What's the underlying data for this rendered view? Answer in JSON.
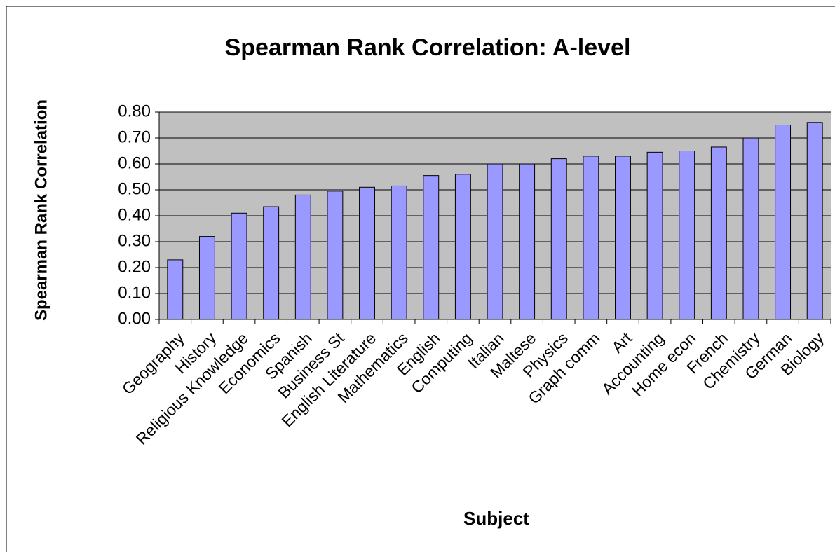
{
  "chart_data": {
    "type": "bar",
    "title": "Spearman Rank Correlation: A-level",
    "x_label": "Subject",
    "y_label": "Spearman Rank Correlation",
    "categories": [
      "Geography",
      "History",
      "Religious Knowledge",
      "Economics",
      "Spanish",
      "Business St",
      "English Literature",
      "Mathematics",
      "English",
      "Computing",
      "Italian",
      "Maltese",
      "Physics",
      "Graph comm",
      "Art",
      "Accounting",
      "Home econ",
      "French",
      "Chemistry",
      "German",
      "Biology"
    ],
    "values": [
      0.23,
      0.32,
      0.41,
      0.435,
      0.48,
      0.495,
      0.51,
      0.515,
      0.555,
      0.56,
      0.6,
      0.6,
      0.62,
      0.63,
      0.63,
      0.645,
      0.65,
      0.665,
      0.7,
      0.75,
      0.76
    ],
    "color": "#9999ff",
    "ylim": [
      0,
      0.8
    ],
    "yticks": [
      {
        "value": 0,
        "label": "0.00"
      },
      {
        "value": 0.1,
        "label": "0.10"
      },
      {
        "value": 0.2,
        "label": "0.20"
      },
      {
        "value": 0.3,
        "label": "0.30"
      },
      {
        "value": 0.4,
        "label": "0.40"
      },
      {
        "value": 0.5,
        "label": "0.50"
      },
      {
        "value": 0.6,
        "label": "0.60"
      },
      {
        "value": 0.7,
        "label": "0.70"
      },
      {
        "value": 0.8,
        "label": "0.80"
      }
    ],
    "grid": true,
    "plot_background": "#c0c0c0"
  }
}
